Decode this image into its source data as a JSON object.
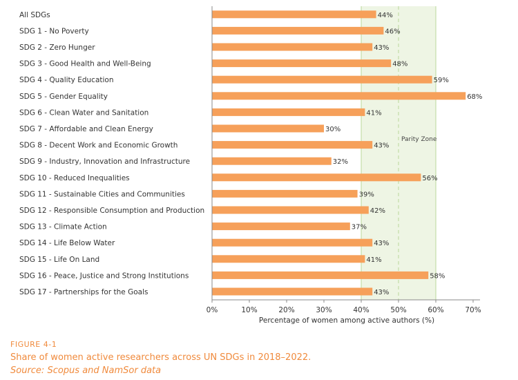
{
  "figure": {
    "label": "FIGURE 4-1",
    "title": "Share of women active researchers across UN SDGs in 2018–2022.",
    "source": "Source: Scopus and NamSor data"
  },
  "colors": {
    "bar": "#f6a05a",
    "parity_fill": "#eef5e4",
    "parity_line": "#b9d89a",
    "text": "#333333",
    "caption": "#f08a3c"
  },
  "chart_data": {
    "type": "bar",
    "orientation": "horizontal",
    "xlabel": "Percentage of women among active authors (%)",
    "xlim": [
      0,
      70
    ],
    "xticks": [
      0,
      10,
      20,
      30,
      40,
      50,
      60,
      70
    ],
    "xtick_labels": [
      "0%",
      "10%",
      "20%",
      "30%",
      "40%",
      "50%",
      "60%",
      "70%"
    ],
    "parity_zone": {
      "label": "Parity Zone",
      "from": 40,
      "to": 60,
      "center": 50
    },
    "categories": [
      "All SDGs",
      "SDG 1 - No Poverty",
      "SDG 2 - Zero Hunger",
      "SDG 3 - Good Health and Well-Being",
      "SDG 4 - Quality Education",
      "SDG 5 - Gender Equality",
      "SDG 6 - Clean Water and Sanitation",
      "SDG 7 - Affordable and Clean Energy",
      "SDG 8 - Decent Work and Economic Growth",
      "SDG 9 - Industry, Innovation and Infrastructure",
      "SDG 10 - Reduced Inequalities",
      "SDG 11 - Sustainable Cities and Communities",
      "SDG 12 - Responsible Consumption and Production",
      "SDG 13 - Climate Action",
      "SDG 14 - Life Below Water",
      "SDG 15 - Life On Land",
      "SDG 16 - Peace, Justice and Strong Institutions",
      "SDG 17 - Partnerships for the Goals"
    ],
    "values": [
      44,
      46,
      43,
      48,
      59,
      68,
      41,
      30,
      43,
      32,
      56,
      39,
      42,
      37,
      43,
      41,
      58,
      43
    ],
    "value_labels": [
      "44%",
      "46%",
      "43%",
      "48%",
      "59%",
      "68%",
      "41%",
      "30%",
      "43%",
      "32%",
      "56%",
      "39%",
      "42%",
      "37%",
      "43%",
      "41%",
      "58%",
      "43%"
    ]
  }
}
